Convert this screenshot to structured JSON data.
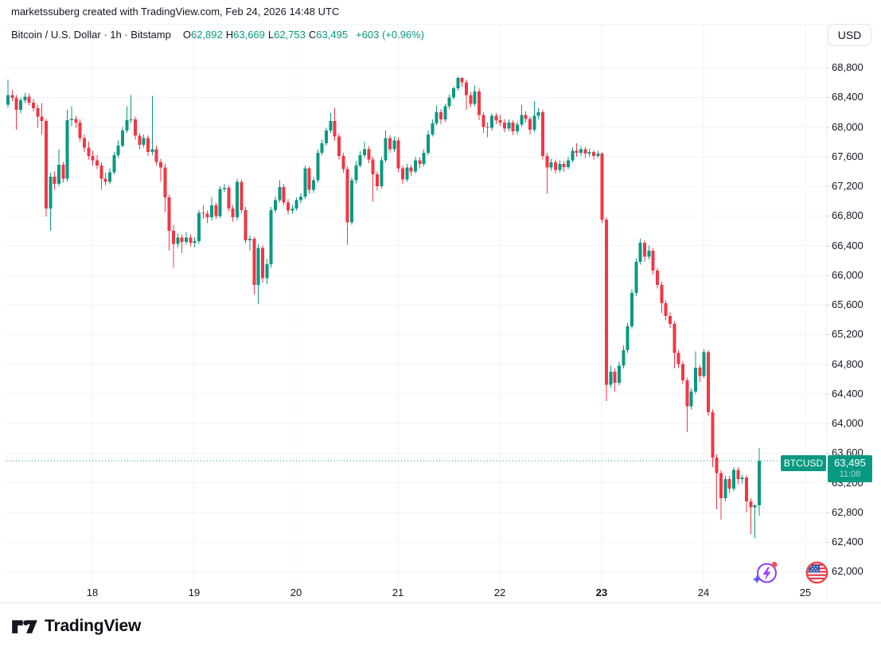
{
  "header": {
    "attribution": "marketssuberg created with TradingView.com, Feb 24, 2026 14:48 UTC"
  },
  "toolbar": {
    "currency_button": "USD"
  },
  "legend": {
    "symbol_title": "Bitcoin / U.S. Dollar · 1h · Bitstamp",
    "ohlc": [
      {
        "label": "O",
        "value": "62,892"
      },
      {
        "label": "H",
        "value": "63,669"
      },
      {
        "label": "L",
        "value": "62,753"
      },
      {
        "label": "C",
        "value": "63,495"
      }
    ],
    "change": "+603 (+0.96%)"
  },
  "price_label": {
    "symbol": "BTCUSD",
    "price": "63,495",
    "countdown": "11:08"
  },
  "footer": {
    "brand": "TradingView"
  },
  "icons": {
    "spark": "boost-spark-icon",
    "flag": "us-flag-icon",
    "logo": "tradingview-logo-icon"
  },
  "colors": {
    "up": "#089981",
    "down": "#F23645",
    "grid": "#f0f3fa",
    "axis_text": "#131722",
    "label_bg": "#089981",
    "dotted_line": "#089981"
  },
  "chart_data": {
    "type": "candlestick",
    "title": "Bitcoin / U.S. Dollar",
    "interval": "1h",
    "exchange": "Bitstamp",
    "last_bar": {
      "open": 62892,
      "high": 63669,
      "low": 62753,
      "close": 63495,
      "change_abs": 603,
      "change_pct": 0.96
    },
    "y_axis": {
      "min": 62000,
      "max": 68800,
      "tick_step": 400,
      "ticks": [
        "68,800",
        "68,400",
        "68,000",
        "67,600",
        "67,200",
        "66,800",
        "66,400",
        "66,000",
        "65,600",
        "65,200",
        "64,800",
        "64,400",
        "64,000",
        "63,600",
        "63,200",
        "62,800",
        "62,400",
        "62,000"
      ]
    },
    "x_axis": {
      "labels": [
        {
          "text": "18",
          "bold": false
        },
        {
          "text": "19",
          "bold": false
        },
        {
          "text": "20",
          "bold": false
        },
        {
          "text": "21",
          "bold": false
        },
        {
          "text": "22",
          "bold": false
        },
        {
          "text": "23",
          "bold": true
        },
        {
          "text": "24",
          "bold": false
        },
        {
          "text": "25",
          "bold": false
        }
      ]
    },
    "grid": true,
    "legend_position": "top-left",
    "candles": [
      [
        68300,
        68640,
        68260,
        68430
      ],
      [
        68430,
        68500,
        68350,
        68390
      ],
      [
        68390,
        68430,
        67960,
        68230
      ],
      [
        68230,
        68400,
        68190,
        68360
      ],
      [
        68360,
        68460,
        68320,
        68410
      ],
      [
        68410,
        68450,
        68290,
        68330
      ],
      [
        68330,
        68380,
        68210,
        68250
      ],
      [
        68250,
        68300,
        67990,
        68140
      ],
      [
        68140,
        68320,
        67900,
        68080
      ],
      [
        68080,
        68110,
        66790,
        66900
      ],
      [
        66900,
        67380,
        66600,
        67330
      ],
      [
        67330,
        67400,
        67150,
        67230
      ],
      [
        67230,
        67700,
        67200,
        67490
      ],
      [
        67490,
        67530,
        67250,
        67300
      ],
      [
        67300,
        68230,
        67260,
        68090
      ],
      [
        68090,
        68280,
        68010,
        68110
      ],
      [
        68110,
        68150,
        67990,
        68060
      ],
      [
        68060,
        68100,
        67800,
        67850
      ],
      [
        67850,
        67900,
        67660,
        67720
      ],
      [
        67720,
        67800,
        67560,
        67610
      ],
      [
        67610,
        67680,
        67480,
        67550
      ],
      [
        67550,
        67620,
        67430,
        67480
      ],
      [
        67480,
        67520,
        67150,
        67300
      ],
      [
        67300,
        67380,
        67210,
        67260
      ],
      [
        67260,
        67440,
        67230,
        67390
      ],
      [
        67390,
        67660,
        67360,
        67620
      ],
      [
        67620,
        67820,
        67580,
        67750
      ],
      [
        67750,
        68000,
        67720,
        67950
      ],
      [
        67950,
        68280,
        67920,
        68090
      ],
      [
        68090,
        68430,
        68050,
        68100
      ],
      [
        68100,
        68140,
        67830,
        67880
      ],
      [
        67880,
        67920,
        67700,
        67760
      ],
      [
        67760,
        67900,
        67720,
        67850
      ],
      [
        67850,
        67890,
        67610,
        67660
      ],
      [
        67660,
        68420,
        67620,
        67700
      ],
      [
        67700,
        67750,
        67480,
        67530
      ],
      [
        67530,
        67570,
        67260,
        67450
      ],
      [
        67450,
        67500,
        66850,
        67050
      ],
      [
        67050,
        67090,
        66330,
        66600
      ],
      [
        66600,
        66680,
        66100,
        66420
      ],
      [
        66420,
        66560,
        66380,
        66510
      ],
      [
        66510,
        66550,
        66300,
        66450
      ],
      [
        66450,
        66580,
        66410,
        66510
      ],
      [
        66510,
        66550,
        66390,
        66440
      ],
      [
        66440,
        66520,
        66380,
        66460
      ],
      [
        66460,
        66880,
        66420,
        66840
      ],
      [
        66840,
        66940,
        66760,
        66830
      ],
      [
        66830,
        66870,
        66700,
        66780
      ],
      [
        66780,
        67050,
        66740,
        66940
      ],
      [
        66940,
        66980,
        66760,
        66800
      ],
      [
        66800,
        67200,
        66770,
        67160
      ],
      [
        67160,
        67230,
        67120,
        67180
      ],
      [
        67180,
        67210,
        66860,
        66900
      ],
      [
        66900,
        66950,
        66720,
        66780
      ],
      [
        66780,
        67300,
        66740,
        67260
      ],
      [
        67260,
        67290,
        66840,
        66880
      ],
      [
        66880,
        66920,
        66430,
        66470
      ],
      [
        66470,
        66540,
        66330,
        66490
      ],
      [
        66490,
        66520,
        65740,
        65870
      ],
      [
        65870,
        66420,
        65610,
        66370
      ],
      [
        66370,
        66400,
        65900,
        65960
      ],
      [
        65960,
        66220,
        65880,
        66150
      ],
      [
        66150,
        66920,
        66100,
        66880
      ],
      [
        66880,
        67060,
        66840,
        67010
      ],
      [
        67010,
        67280,
        66980,
        67190
      ],
      [
        67190,
        67230,
        66940,
        66980
      ],
      [
        66980,
        67030,
        66820,
        66870
      ],
      [
        66870,
        66950,
        66830,
        66900
      ],
      [
        66900,
        67050,
        66870,
        67010
      ],
      [
        67010,
        67110,
        66970,
        67060
      ],
      [
        67060,
        67480,
        67030,
        67440
      ],
      [
        67440,
        67470,
        67100,
        67150
      ],
      [
        67150,
        67330,
        67110,
        67280
      ],
      [
        67280,
        67700,
        67250,
        67650
      ],
      [
        67650,
        67830,
        67620,
        67780
      ],
      [
        67780,
        67990,
        67750,
        67950
      ],
      [
        67950,
        68190,
        67920,
        68080
      ],
      [
        68080,
        68260,
        67820,
        67870
      ],
      [
        67870,
        67910,
        67560,
        67610
      ],
      [
        67610,
        67650,
        67380,
        67430
      ],
      [
        67430,
        67470,
        66410,
        66710
      ],
      [
        66710,
        67320,
        66680,
        67280
      ],
      [
        67280,
        67540,
        67240,
        67480
      ],
      [
        67480,
        67670,
        67450,
        67620
      ],
      [
        67620,
        67800,
        67580,
        67700
      ],
      [
        67700,
        67740,
        67510,
        67560
      ],
      [
        67560,
        67600,
        66990,
        67360
      ],
      [
        67360,
        67400,
        67140,
        67200
      ],
      [
        67200,
        67600,
        67170,
        67550
      ],
      [
        67550,
        67950,
        67520,
        67850
      ],
      [
        67850,
        67890,
        67650,
        67700
      ],
      [
        67700,
        67870,
        67660,
        67820
      ],
      [
        67820,
        67860,
        67390,
        67440
      ],
      [
        67440,
        67480,
        67230,
        67290
      ],
      [
        67290,
        67500,
        67260,
        67450
      ],
      [
        67450,
        67490,
        67340,
        67400
      ],
      [
        67400,
        67600,
        67370,
        67550
      ],
      [
        67550,
        67590,
        67440,
        67500
      ],
      [
        67500,
        67700,
        67470,
        67650
      ],
      [
        67650,
        67950,
        67620,
        67900
      ],
      [
        67900,
        68100,
        67870,
        68050
      ],
      [
        68050,
        68290,
        68020,
        68200
      ],
      [
        68200,
        68240,
        68040,
        68100
      ],
      [
        68100,
        68310,
        68070,
        68280
      ],
      [
        68280,
        68440,
        68240,
        68400
      ],
      [
        68400,
        68550,
        68370,
        68520
      ],
      [
        68520,
        68680,
        68490,
        68660
      ],
      [
        68660,
        68670,
        68540,
        68600
      ],
      [
        68600,
        68640,
        68230,
        68430
      ],
      [
        68430,
        68470,
        68270,
        68310
      ],
      [
        68310,
        68560,
        68280,
        68480
      ],
      [
        68480,
        68520,
        68090,
        68160
      ],
      [
        68160,
        68200,
        67920,
        68000
      ],
      [
        68000,
        68060,
        67860,
        67990
      ],
      [
        67990,
        68180,
        67950,
        68150
      ],
      [
        68150,
        68190,
        68040,
        68090
      ],
      [
        68090,
        68160,
        68010,
        68060
      ],
      [
        68060,
        68110,
        67930,
        67980
      ],
      [
        67980,
        68100,
        67940,
        68060
      ],
      [
        68060,
        68090,
        67890,
        67940
      ],
      [
        67940,
        68070,
        67900,
        68030
      ],
      [
        68030,
        68300,
        68000,
        68160
      ],
      [
        68160,
        68210,
        68060,
        68110
      ],
      [
        68110,
        68140,
        67900,
        67960
      ],
      [
        67960,
        68350,
        67930,
        68150
      ],
      [
        68150,
        68250,
        68100,
        68200
      ],
      [
        68200,
        68230,
        67560,
        67610
      ],
      [
        67610,
        67650,
        67100,
        67450
      ],
      [
        67450,
        67570,
        67410,
        67520
      ],
      [
        67520,
        67560,
        67370,
        67420
      ],
      [
        67420,
        67550,
        67390,
        67500
      ],
      [
        67500,
        67540,
        67400,
        67460
      ],
      [
        67460,
        67600,
        67430,
        67550
      ],
      [
        67550,
        67720,
        67520,
        67680
      ],
      [
        67680,
        67780,
        67600,
        67650
      ],
      [
        67650,
        67740,
        67610,
        67700
      ],
      [
        67700,
        67730,
        67580,
        67640
      ],
      [
        67640,
        67710,
        67600,
        67660
      ],
      [
        67660,
        67690,
        67560,
        67610
      ],
      [
        67610,
        67680,
        67580,
        67640
      ],
      [
        67640,
        67660,
        66700,
        66750
      ],
      [
        66750,
        66780,
        64300,
        64520
      ],
      [
        64520,
        64780,
        64480,
        64700
      ],
      [
        64700,
        64740,
        64430,
        64550
      ],
      [
        64550,
        64830,
        64510,
        64780
      ],
      [
        64780,
        65050,
        64740,
        64990
      ],
      [
        64990,
        65360,
        64950,
        65310
      ],
      [
        65310,
        65810,
        65280,
        65760
      ],
      [
        65760,
        66230,
        65720,
        66180
      ],
      [
        66180,
        66490,
        66140,
        66440
      ],
      [
        66440,
        66470,
        66180,
        66250
      ],
      [
        66250,
        66400,
        66210,
        66330
      ],
      [
        66330,
        66370,
        66010,
        66060
      ],
      [
        66060,
        66100,
        65820,
        65870
      ],
      [
        65870,
        65910,
        65490,
        65620
      ],
      [
        65620,
        65660,
        65390,
        65450
      ],
      [
        65450,
        65500,
        65290,
        65340
      ],
      [
        65340,
        65380,
        64740,
        64950
      ],
      [
        64950,
        64990,
        64750,
        64800
      ],
      [
        64800,
        64840,
        64530,
        64580
      ],
      [
        64580,
        64620,
        63880,
        64230
      ],
      [
        64230,
        64480,
        64190,
        64430
      ],
      [
        64430,
        64970,
        64400,
        64750
      ],
      [
        64750,
        64790,
        64560,
        64640
      ],
      [
        64640,
        65000,
        64610,
        64960
      ],
      [
        64960,
        64990,
        64100,
        64150
      ],
      [
        64150,
        64190,
        63410,
        63540
      ],
      [
        63540,
        63580,
        62840,
        63330
      ],
      [
        63330,
        63370,
        62700,
        62990
      ],
      [
        62990,
        63290,
        62950,
        63250
      ],
      [
        63250,
        63290,
        63060,
        63120
      ],
      [
        63120,
        63410,
        63090,
        63370
      ],
      [
        63370,
        63410,
        63180,
        63250
      ],
      [
        63250,
        63310,
        63190,
        63270
      ],
      [
        63270,
        63300,
        62800,
        62950
      ],
      [
        62950,
        62990,
        62500,
        62870
      ],
      [
        62870,
        62910,
        62450,
        62892
      ],
      [
        62892,
        63669,
        62753,
        63495
      ]
    ]
  }
}
